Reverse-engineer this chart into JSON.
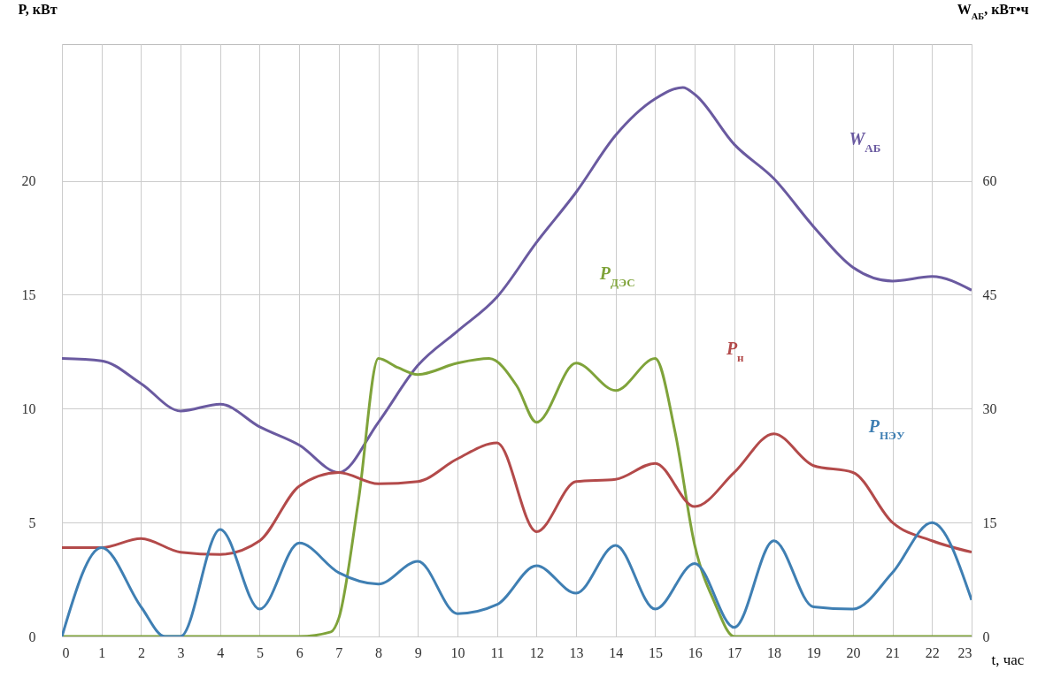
{
  "chart_data": {
    "type": "line",
    "xlabel": "t, час",
    "ylabel": "P, кВт",
    "y2label": "W$_{АБ}$, кВт•ч",
    "xlim": [
      0,
      23
    ],
    "xticks": [
      0,
      1,
      2,
      3,
      4,
      5,
      6,
      7,
      8,
      9,
      10,
      11,
      12,
      13,
      14,
      15,
      16,
      17,
      18,
      19,
      20,
      21,
      22,
      23
    ],
    "ylim": [
      0,
      26
    ],
    "yticks": [
      0,
      5,
      10,
      15,
      20
    ],
    "y2lim": [
      0,
      78
    ],
    "y2ticks": [
      0,
      15,
      30,
      45,
      60
    ],
    "grid": true,
    "legend": false,
    "series": [
      {
        "name": "W$_{АБ}$",
        "color": "#6a5aa0",
        "axis": "y2",
        "x": [
          0,
          1,
          2,
          3,
          4,
          5,
          6,
          7,
          8,
          9,
          10,
          11,
          12,
          13,
          14,
          15,
          15.7,
          16,
          17,
          18,
          19,
          20,
          21,
          22,
          23
        ],
        "values": [
          36.6,
          36.3,
          33.3,
          29.7,
          30.6,
          27.6,
          25.2,
          21.6,
          28.2,
          35.7,
          40.2,
          44.7,
          51.9,
          58.5,
          66,
          70.8,
          72.3,
          71.4,
          64.8,
          60.3,
          54,
          48.6,
          46.8,
          47.4,
          45.6
        ]
      },
      {
        "name": "P$_{ДЭС}$",
        "color": "#7fa33a",
        "x": [
          0,
          6,
          6.8,
          7,
          7.5,
          8,
          8.5,
          9,
          10,
          10.8,
          11.5,
          12,
          13,
          14,
          15,
          15.5,
          16,
          16.5,
          17,
          18,
          23
        ],
        "values": [
          0,
          0,
          0.2,
          0.8,
          6,
          12.2,
          11.8,
          11.5,
          12,
          12.2,
          11,
          9.4,
          12,
          10.8,
          12.2,
          9,
          4,
          1.5,
          0,
          0,
          0
        ]
      },
      {
        "name": "P$_{н}$",
        "color": "#b34a4a",
        "x": [
          0,
          1,
          2,
          3,
          4,
          5,
          6,
          7,
          8,
          9,
          10,
          11,
          12,
          13,
          14,
          15,
          16,
          17,
          18,
          19,
          20,
          21,
          22,
          23
        ],
        "values": [
          3.9,
          3.9,
          4.3,
          3.7,
          3.6,
          4.2,
          6.6,
          7.2,
          6.7,
          6.8,
          7.8,
          8.5,
          4.6,
          6.8,
          6.9,
          7.6,
          5.7,
          7.2,
          8.9,
          7.5,
          7.2,
          5,
          4.2,
          3.7
        ]
      },
      {
        "name": "P$_{НЭУ}$",
        "color": "#3f7fb3",
        "x": [
          0,
          1,
          2,
          2.6,
          3,
          4,
          5,
          6,
          7,
          8,
          9,
          10,
          11,
          12,
          13,
          14,
          15,
          16,
          17,
          18,
          19,
          20,
          21,
          22,
          23
        ],
        "values": [
          0,
          3.9,
          1.3,
          0,
          0,
          4.7,
          1.2,
          4.1,
          2.8,
          2.3,
          3.3,
          1,
          1.4,
          3.1,
          1.9,
          4,
          1.2,
          3.2,
          0.4,
          4.2,
          1.3,
          1.2,
          2.8,
          5,
          1.6
        ]
      }
    ]
  }
}
